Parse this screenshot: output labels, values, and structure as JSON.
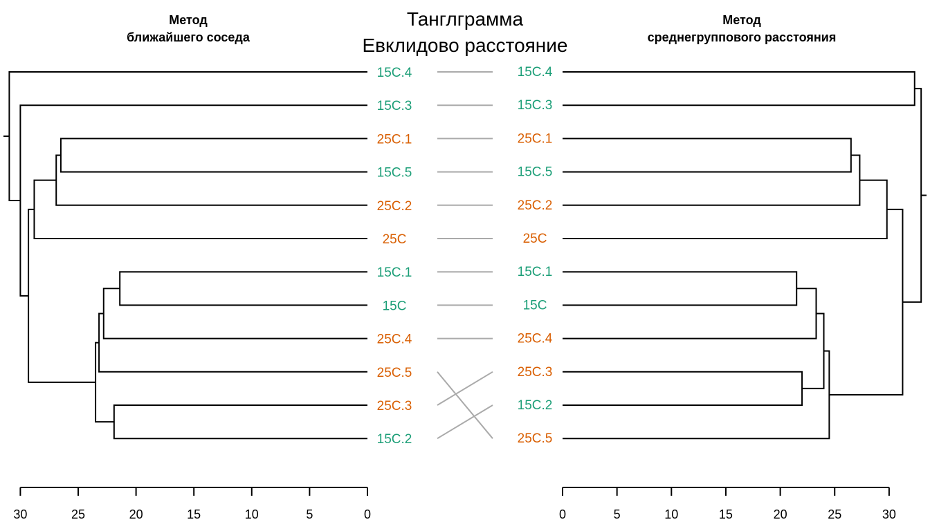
{
  "chart_data": {
    "type": "tanglegram",
    "title": [
      "Танглграмма",
      "Евклидово расстояние"
    ],
    "colors": {
      "15C": "#1b9e77",
      "25C": "#d95f02",
      "branch": "#000000",
      "connector": "#aaaaaa"
    },
    "left": {
      "title": [
        "Метод",
        "ближайшего соседа"
      ],
      "xlim": [
        30,
        0
      ],
      "ticks": [
        30,
        25,
        20,
        15,
        10,
        5,
        0
      ],
      "leaves": [
        {
          "label": "15C.4",
          "group": "15C"
        },
        {
          "label": "15C.3",
          "group": "15C"
        },
        {
          "label": "25C.1",
          "group": "25C"
        },
        {
          "label": "15C.5",
          "group": "15C"
        },
        {
          "label": "25C.2",
          "group": "25C"
        },
        {
          "label": "25C",
          "group": "25C"
        },
        {
          "label": "15C.1",
          "group": "15C"
        },
        {
          "label": "15C",
          "group": "15C"
        },
        {
          "label": "25C.4",
          "group": "25C"
        },
        {
          "label": "25C.5",
          "group": "25C"
        },
        {
          "label": "25C.3",
          "group": "25C"
        },
        {
          "label": "15C.2",
          "group": "15C"
        }
      ],
      "merges": [
        {
          "a": "L2",
          "b": "L3",
          "h": 26.5
        },
        {
          "a": "L6",
          "b": "L7",
          "h": 21.4
        },
        {
          "a": "L10",
          "b": "L11",
          "h": 21.9
        },
        {
          "a": "N0",
          "b": "L4",
          "h": 26.9
        },
        {
          "a": "N1",
          "b": "L8",
          "h": 22.8
        },
        {
          "a": "N3",
          "b": "L5",
          "h": 28.8
        },
        {
          "a": "N4",
          "b": "L9",
          "h": 23.2
        },
        {
          "a": "N6",
          "b": "N2",
          "h": 23.5
        },
        {
          "a": "N5",
          "b": "N7",
          "h": 29.3
        },
        {
          "a": "L1",
          "b": "N8",
          "h": 30.0
        },
        {
          "a": "L0",
          "b": "N9",
          "h": 31.1
        }
      ]
    },
    "right": {
      "title": [
        "Метод",
        "среднегруппового расстояния"
      ],
      "xlim": [
        0,
        30
      ],
      "ticks": [
        0,
        5,
        10,
        15,
        20,
        25,
        30
      ],
      "leaves": [
        {
          "label": "15C.4",
          "group": "15C"
        },
        {
          "label": "15C.3",
          "group": "15C"
        },
        {
          "label": "25C.1",
          "group": "25C"
        },
        {
          "label": "15C.5",
          "group": "15C"
        },
        {
          "label": "25C.2",
          "group": "25C"
        },
        {
          "label": "25C",
          "group": "25C"
        },
        {
          "label": "15C.1",
          "group": "15C"
        },
        {
          "label": "15C",
          "group": "15C"
        },
        {
          "label": "25C.4",
          "group": "25C"
        },
        {
          "label": "25C.3",
          "group": "25C"
        },
        {
          "label": "15C.2",
          "group": "15C"
        },
        {
          "label": "25C.5",
          "group": "25C"
        }
      ],
      "merges": [
        {
          "a": "L2",
          "b": "L3",
          "h": 26.5
        },
        {
          "a": "L6",
          "b": "L7",
          "h": 21.5
        },
        {
          "a": "L9",
          "b": "L10",
          "h": 22.0
        },
        {
          "a": "L0",
          "b": "L1",
          "h": 32.4
        },
        {
          "a": "N0",
          "b": "L4",
          "h": 27.3
        },
        {
          "a": "N1",
          "b": "L8",
          "h": 23.3
        },
        {
          "a": "N4",
          "b": "L5",
          "h": 29.8
        },
        {
          "a": "N5",
          "b": "N2",
          "h": 24.0
        },
        {
          "a": "N7",
          "b": "L11",
          "h": 24.5
        },
        {
          "a": "N6",
          "b": "N8",
          "h": 31.3
        },
        {
          "a": "N3",
          "b": "N9",
          "h": 33.0
        }
      ]
    }
  }
}
